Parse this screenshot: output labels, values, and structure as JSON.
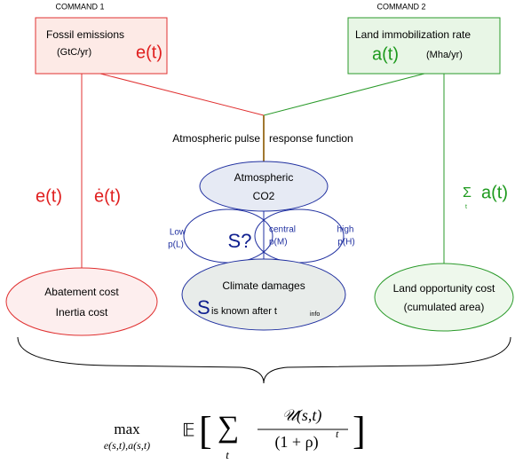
{
  "commands": [
    {
      "label": "COMMAND 1",
      "title": "Fossil emissions",
      "unit": "(GtC/yr)",
      "variable": "e(t)"
    },
    {
      "label": "COMMAND 2",
      "title": "Land immobilization rate",
      "variable": "a(t)",
      "unit": "(Mha/yr)"
    }
  ],
  "pulse": {
    "left": "Atmospheric pulse",
    "right": "response function"
  },
  "co2": {
    "line1": "Atmospheric",
    "line2": "CO2"
  },
  "scenarios": {
    "low": {
      "name": "Low",
      "prob": "p(L)"
    },
    "central": {
      "name": "central",
      "prob": "p(M)"
    },
    "high": {
      "name": "high",
      "prob": "p(H)"
    },
    "unknown": "S?"
  },
  "left_labels": {
    "level": "e(t)",
    "rate": "ė(t)"
  },
  "right_label": {
    "sum": "Σ",
    "index": "t",
    "variable": "a(t)"
  },
  "costs": {
    "left": {
      "line1": "Abatement cost",
      "line2": "Inertia cost"
    },
    "center": {
      "title": "Climate damages",
      "s": "S",
      "known": "is known after t",
      "sub": "info"
    },
    "right": {
      "line1": "Land opportunity cost",
      "line2": "(cumulated area)"
    }
  },
  "formula": {
    "max": "max",
    "under": "e(s,t),a(s,t)",
    "expect": "𝔼",
    "open": "[",
    "sum": "∑",
    "sum_index": "t",
    "numerator": "𝒰(s,t)",
    "denominator": "(1 + ρ)",
    "exponent": "t",
    "close": "]"
  }
}
